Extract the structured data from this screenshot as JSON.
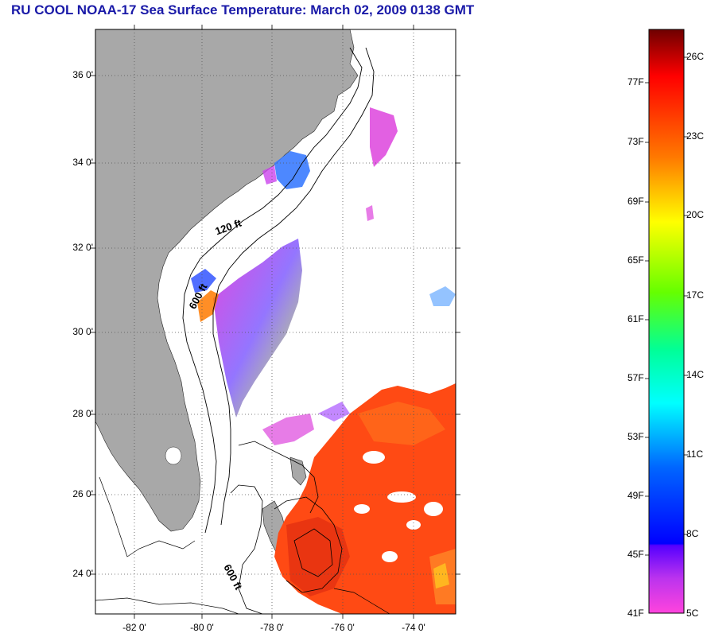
{
  "title": "RU COOL  NOAA-17  Sea Surface Temperature:  March 02, 2009 0138 GMT",
  "map": {
    "lat_labels": [
      "36 0'",
      "34 0'",
      "32 0'",
      "30 0'",
      "28 0'",
      "26 0'",
      "24 0'"
    ],
    "lon_labels": [
      "-82 0'",
      "-80 0'",
      "-78 0'",
      "-76 0'",
      "-74 0'"
    ],
    "contour_labels": [
      "120 ft",
      "600 ft",
      "600 ft"
    ],
    "colors": {
      "land": "#a8a8a8",
      "sea_no_data": "#ffffff"
    }
  },
  "colorbar": {
    "fahrenheit_labels": [
      "77F",
      "73F",
      "69F",
      "65F",
      "61F",
      "57F",
      "53F",
      "49F",
      "45F",
      "41F"
    ],
    "celsius_labels": [
      "26C",
      "23C",
      "20C",
      "17C",
      "14C",
      "11C",
      "8C",
      "5C"
    ],
    "colors": [
      "#7a0000",
      "#ff0000",
      "#ff7f00",
      "#ffff00",
      "#00ff00",
      "#00ffff",
      "#0000ff",
      "#8a2be2",
      "#ff33cc"
    ]
  }
}
